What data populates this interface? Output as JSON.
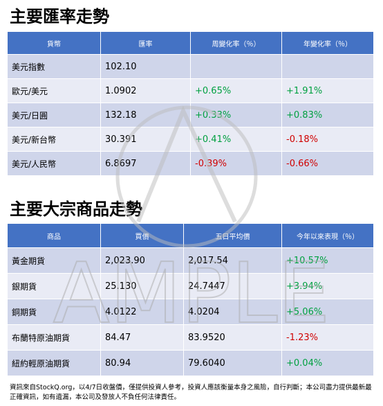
{
  "section1": {
    "title": "主要匯率走勢",
    "table": {
      "header": [
        "貨幣",
        "匯率",
        "周變化率（％）",
        "年變化率（％）"
      ],
      "rows": [
        [
          "美元指數",
          "102.10",
          null,
          null
        ],
        [
          "歐元/美元",
          "1.0902",
          "+0.65%",
          "+1.91%"
        ],
        [
          "美元/日圓",
          "132.18",
          "+0.33%",
          "+0.83%"
        ],
        [
          "美元/新台幣",
          "30.391",
          "+0.41%",
          "-0.18%"
        ],
        [
          "美元/人民幣",
          "6.8697",
          "-0.39%",
          "-0.66%"
        ]
      ]
    }
  },
  "section2": {
    "title": "主要大宗商品走勢",
    "table": {
      "header": [
        "商品",
        "買價",
        "五日平均價",
        "今年以來表現（％）"
      ],
      "rows": [
        [
          "黃金期貨",
          "2,023.90",
          "2,017.54",
          "+10.57%"
        ],
        [
          "銀期貨",
          "25.130",
          "24.7447",
          "+3.94%"
        ],
        [
          "銅期貨",
          "4.0122",
          "4.0204",
          "+5.06%"
        ],
        [
          "布蘭特原油期貨",
          "84.47",
          "83.9520",
          "-1.23%"
        ],
        [
          "紐約輕原油期貨",
          "80.94",
          "79.6040",
          "+0.04%"
        ]
      ]
    }
  },
  "watermark": "AMPLE",
  "footer": "資訊來自StockQ.org，以4/7日收盤價，僅提供投資人參考，投資人應該衡量本身之風險，自行判斷；本公司盡力提供最新最正確資訊，如有遺漏，本公司及發放人不負任何法律責任。"
}
